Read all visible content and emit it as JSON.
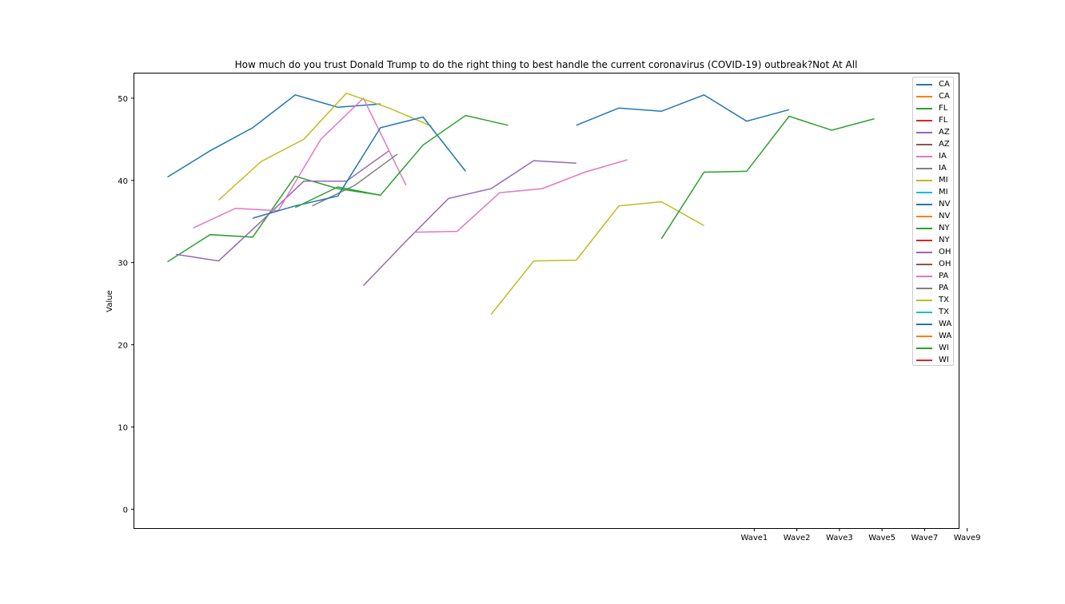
{
  "chart_data": {
    "type": "line",
    "title": "How much do you trust Donald Trump to do the right thing to best handle the current coronavirus (COVID-19) outbreak?Not At All",
    "xlabel": "",
    "ylabel": "Value",
    "ylim": [
      -2.3,
      53
    ],
    "yticks": [
      0,
      10,
      20,
      30,
      40,
      50
    ],
    "xlim": [
      -0.28,
      9.4
    ],
    "xticks": [
      {
        "pos": 7.0,
        "label": "Wave1"
      },
      {
        "pos": 7.5,
        "label": "Wave2"
      },
      {
        "pos": 8.0,
        "label": "Wave3"
      },
      {
        "pos": 8.5,
        "label": "Wave5"
      },
      {
        "pos": 9.0,
        "label": "Wave7"
      },
      {
        "pos": 9.5,
        "label": "Wave9"
      }
    ],
    "legend_position": "upper right",
    "grid": false,
    "series": [
      {
        "name": "CA",
        "color": "#1f77b4",
        "x": [
          0.11,
          0.61,
          1.11,
          1.61,
          2.11,
          2.61
        ],
        "y": [
          40.4,
          43.6,
          46.4,
          50.4,
          48.9,
          49.3
        ]
      },
      {
        "name": "CA",
        "color": "#ff7f0e",
        "x": [],
        "y": []
      },
      {
        "name": "FL",
        "color": "#2ca02c",
        "x": [
          0.11,
          0.61,
          1.11,
          1.61,
          2.11,
          2.61
        ],
        "y": [
          30.1,
          33.4,
          33.1,
          40.5,
          39.0,
          38.2
        ]
      },
      {
        "name": "FL",
        "color": "#d62728",
        "x": [],
        "y": []
      },
      {
        "name": "AZ",
        "color": "#9467bd",
        "x": [
          0.21,
          0.71,
          1.21,
          1.71,
          2.21,
          2.71
        ],
        "y": [
          31.0,
          30.2,
          35.0,
          39.9,
          39.9,
          43.6
        ]
      },
      {
        "name": "AZ",
        "color": "#8c564b",
        "x": [],
        "y": []
      },
      {
        "name": "IA",
        "color": "#e377c2",
        "x": [
          0.41,
          0.91,
          1.41,
          1.91,
          2.41,
          2.91
        ],
        "y": [
          34.2,
          36.6,
          36.3,
          45.0,
          50.0,
          39.4
        ]
      },
      {
        "name": "IA",
        "color": "#7f7f7f",
        "x": [
          1.81,
          2.31,
          2.81
        ],
        "y": [
          36.9,
          39.4,
          43.2
        ]
      },
      {
        "name": "MI",
        "color": "#bcbd22",
        "x": [
          0.71,
          1.21,
          1.71,
          2.21,
          2.71,
          3.21
        ],
        "y": [
          37.6,
          42.3,
          45.0,
          50.6,
          48.8,
          46.6
        ]
      },
      {
        "name": "MI",
        "color": "#17becf",
        "x": [],
        "y": []
      },
      {
        "name": "NV",
        "color": "#1f77b4",
        "x": [
          1.11,
          1.61,
          2.11,
          2.61,
          3.11,
          3.61
        ],
        "y": [
          35.4,
          36.9,
          38.1,
          46.4,
          47.7,
          41.1
        ]
      },
      {
        "name": "NV",
        "color": "#ff7f0e",
        "x": [],
        "y": []
      },
      {
        "name": "NY",
        "color": "#2ca02c",
        "x": [
          1.61,
          2.11,
          2.61,
          3.11,
          3.61,
          4.11
        ],
        "y": [
          36.7,
          39.2,
          38.2,
          44.3,
          47.9,
          46.7
        ]
      },
      {
        "name": "NY",
        "color": "#d62728",
        "x": [],
        "y": []
      },
      {
        "name": "OH",
        "color": "#9467bd",
        "x": [
          2.41,
          2.91,
          3.41,
          3.91,
          4.41,
          4.91
        ],
        "y": [
          27.2,
          32.6,
          37.8,
          39.0,
          42.4,
          42.1
        ]
      },
      {
        "name": "OH",
        "color": "#8c564b",
        "x": [],
        "y": []
      },
      {
        "name": "PA",
        "color": "#e377c2",
        "x": [
          3.01,
          3.51,
          4.01,
          4.51,
          5.01,
          5.51
        ],
        "y": [
          33.7,
          33.8,
          38.5,
          39.0,
          41.0,
          42.5
        ]
      },
      {
        "name": "PA",
        "color": "#7f7f7f",
        "x": [],
        "y": []
      },
      {
        "name": "TX",
        "color": "#bcbd22",
        "x": [
          3.91,
          4.41,
          4.91,
          5.41,
          5.91,
          6.41
        ],
        "y": [
          23.7,
          30.2,
          30.3,
          36.9,
          37.4,
          34.5
        ]
      },
      {
        "name": "TX",
        "color": "#17becf",
        "x": [],
        "y": []
      },
      {
        "name": "WA",
        "color": "#1f77b4",
        "x": [
          4.91,
          5.41,
          5.91,
          6.41,
          6.91,
          7.41
        ],
        "y": [
          46.7,
          48.8,
          48.4,
          50.4,
          47.2,
          48.6
        ]
      },
      {
        "name": "WA",
        "color": "#ff7f0e",
        "x": [],
        "y": []
      },
      {
        "name": "WI",
        "color": "#2ca02c",
        "x": [
          5.91,
          6.41,
          6.91,
          7.41,
          7.91,
          8.41
        ],
        "y": [
          32.9,
          41.0,
          41.1,
          47.8,
          46.1,
          47.5
        ]
      },
      {
        "name": "WI",
        "color": "#d62728",
        "x": [],
        "y": []
      }
    ]
  }
}
